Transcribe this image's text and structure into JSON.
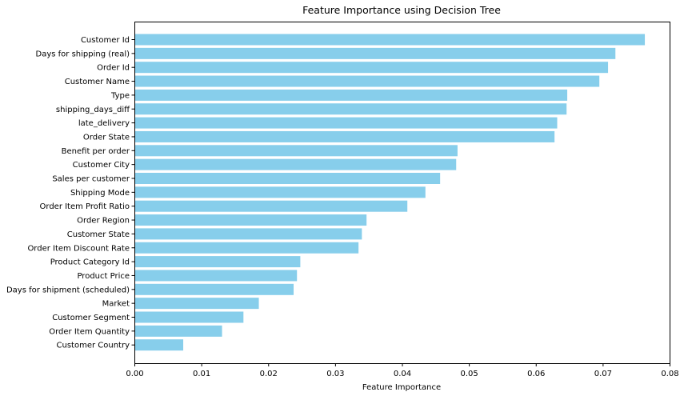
{
  "chart_data": {
    "type": "bar",
    "orientation": "horizontal",
    "title": "Feature Importance using Decision Tree",
    "xlabel": "Feature Importance",
    "ylabel": "",
    "xlim": [
      0,
      0.08
    ],
    "xticks": [
      "0.00",
      "0.01",
      "0.02",
      "0.03",
      "0.04",
      "0.05",
      "0.06",
      "0.07",
      "0.08"
    ],
    "xtick_values": [
      0,
      0.01,
      0.02,
      0.03,
      0.04,
      0.05,
      0.06,
      0.07,
      0.08
    ],
    "bar_color": "#87CEEB",
    "grid": false,
    "categories": [
      "Customer Id",
      "Days for shipping (real)",
      "Order Id",
      "Customer Name",
      "Type",
      "shipping_days_diff",
      "late_delivery",
      "Order State",
      "Benefit per order",
      "Customer City",
      "Sales per customer",
      "Shipping Mode",
      "Order Item Profit Ratio",
      "Order Region",
      "Customer State",
      "Order Item Discount Rate",
      "Product Category Id",
      "Product Price",
      "Days for shipment (scheduled)",
      "Market",
      "Customer Segment",
      "Order Item Quantity",
      "Customer Country"
    ],
    "values": [
      0.0763,
      0.0719,
      0.0708,
      0.0695,
      0.0647,
      0.0646,
      0.0632,
      0.0628,
      0.0483,
      0.0481,
      0.0457,
      0.0435,
      0.0408,
      0.0347,
      0.034,
      0.0335,
      0.0248,
      0.0243,
      0.0238,
      0.0186,
      0.0163,
      0.0131,
      0.0073
    ]
  }
}
